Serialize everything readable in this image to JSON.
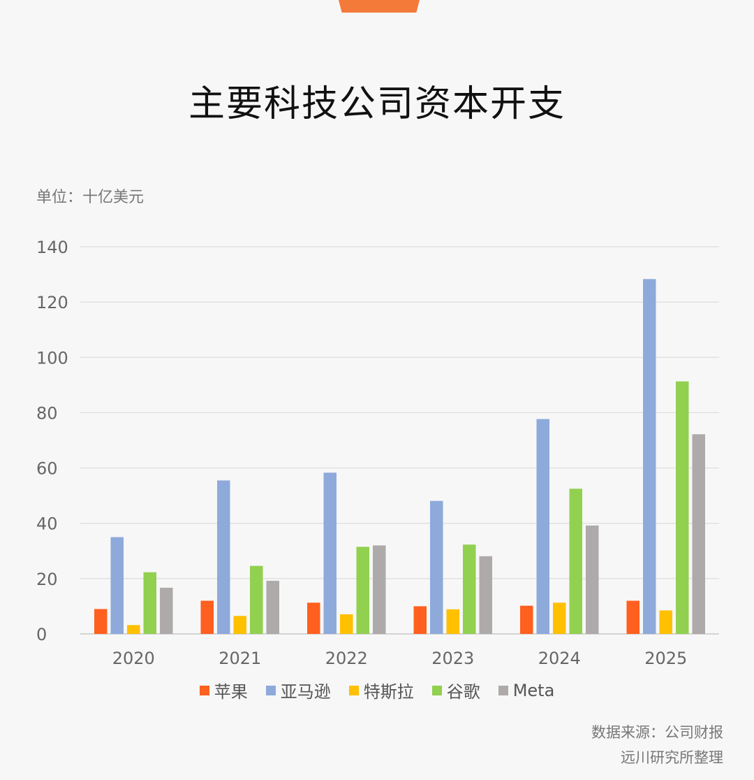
{
  "title": "主要科技公司资本开支",
  "unit_label": "单位：十亿美元",
  "source": {
    "line1": "数据来源：公司财报",
    "line2": "远川研究所整理"
  },
  "chart_data": {
    "type": "bar",
    "categories": [
      "2020",
      "2021",
      "2022",
      "2023",
      "2024",
      "2025"
    ],
    "ylim": [
      0,
      140
    ],
    "yticks": [
      0,
      20,
      40,
      60,
      80,
      100,
      120,
      140
    ],
    "grid": true,
    "legend_position": "bottom",
    "series": [
      {
        "name": "苹果",
        "color": "#ff5f1f",
        "values": [
          9.0,
          12.0,
          11.3,
          10.0,
          10.2,
          12.0
        ]
      },
      {
        "name": "亚马逊",
        "color": "#8eaadb",
        "values": [
          35.0,
          55.5,
          58.3,
          48.1,
          77.7,
          128.3
        ]
      },
      {
        "name": "特斯拉",
        "color": "#ffc000",
        "values": [
          3.2,
          6.5,
          7.1,
          8.9,
          11.3,
          8.5
        ]
      },
      {
        "name": "谷歌",
        "color": "#92d050",
        "values": [
          22.3,
          24.6,
          31.5,
          32.3,
          52.5,
          91.3
        ]
      },
      {
        "name": "Meta",
        "color": "#aeaaaa",
        "values": [
          16.7,
          19.2,
          32.0,
          28.1,
          39.2,
          72.2
        ]
      }
    ]
  }
}
